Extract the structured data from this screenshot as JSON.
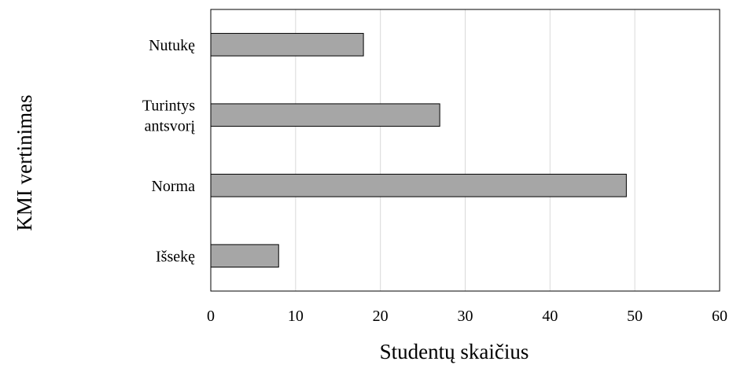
{
  "chart_data": {
    "type": "bar",
    "orientation": "horizontal",
    "categories": [
      [
        "Nutukę"
      ],
      [
        "Turintys",
        "antsvorį"
      ],
      [
        "Norma"
      ],
      [
        "Išsekę"
      ]
    ],
    "values": [
      18,
      27,
      49,
      8
    ],
    "xlabel": "Studentų skaičius",
    "ylabel": "KMI vertinimas",
    "xlim": [
      0,
      60
    ],
    "xticks": [
      0,
      10,
      20,
      30,
      40,
      50,
      60
    ],
    "grid": "vertical",
    "legend": "none",
    "bar_color": "#a6a6a6",
    "bar_edge_color": "#000000",
    "grid_color": "#d9d9d9"
  }
}
